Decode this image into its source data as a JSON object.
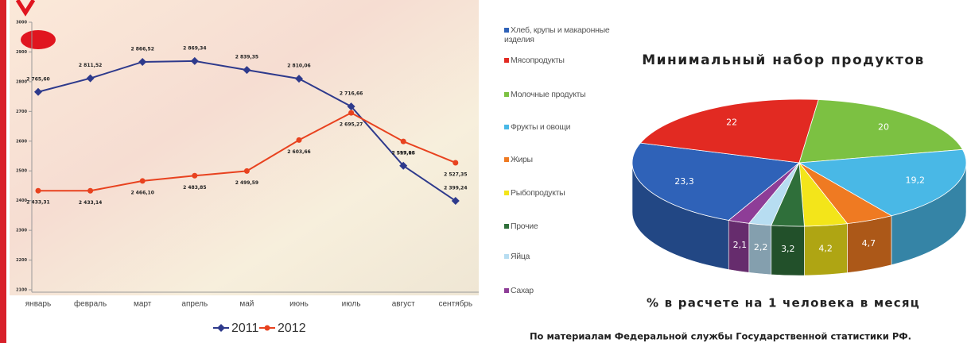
{
  "chart_data": [
    {
      "type": "line",
      "categories": [
        "январь",
        "февраль",
        "март",
        "апрель",
        "май",
        "июнь",
        "июль",
        "август",
        "сентябрь"
      ],
      "series": [
        {
          "name": "2011",
          "color": "#2e3a8c",
          "values": [
            2765.6,
            2811.52,
            2866.52,
            2869.34,
            2839.35,
            2810.06,
            2716.66,
            2517.15,
            2399.24
          ],
          "value_labels": [
            "2 765,60",
            "2 811,52",
            "2 866,52",
            "2 869,34",
            "2 839,35",
            "2 810,06",
            "2 716,66",
            "2 517,15",
            "2 399,24"
          ]
        },
        {
          "name": "2012",
          "color": "#e8421f",
          "values": [
            2433.31,
            2433.14,
            2466.1,
            2483.85,
            2499.59,
            2603.66,
            2695.27,
            2599.06,
            2527.35
          ],
          "value_labels": [
            "2 433,31",
            "2 433,14",
            "2 466,10",
            "2 483,85",
            "2 499,59",
            "2 603,66",
            "2 695,27",
            "2 599,06",
            "2 527,35"
          ]
        }
      ],
      "ylim": [
        2100,
        3000
      ],
      "yticks": [
        2100,
        2200,
        2300,
        2400,
        2500,
        2600,
        2700,
        2800,
        2900,
        3000
      ]
    },
    {
      "type": "pie",
      "title": "Минимальный набор продуктов",
      "subtitle": "% в расчете на 1 человека в месяц",
      "source": "По материалам Федеральной службы Государственной статистики РФ.",
      "categories": [
        "Хлеб, крупы и макаронные изделия",
        "Мясопродукты",
        "Молочные продукты",
        "Фрукты и овощи",
        "Жиры",
        "Рыбопродукты",
        "Прочие",
        "Яйца",
        "Сахар"
      ],
      "values": [
        23.3,
        22,
        20,
        19.2,
        4.7,
        4.2,
        3.2,
        2.2,
        2.1
      ],
      "value_labels": [
        "23,3",
        "22",
        "20",
        "19,2",
        "4,7",
        "4,2",
        "3,2",
        "2,2",
        "2,1"
      ],
      "colors": [
        "#2f62b8",
        "#e22a22",
        "#7cc142",
        "#49b8e6",
        "#ef7a22",
        "#f3e51a",
        "#2f6f3a",
        "#b7ddf1",
        "#8e3d97"
      ]
    }
  ]
}
